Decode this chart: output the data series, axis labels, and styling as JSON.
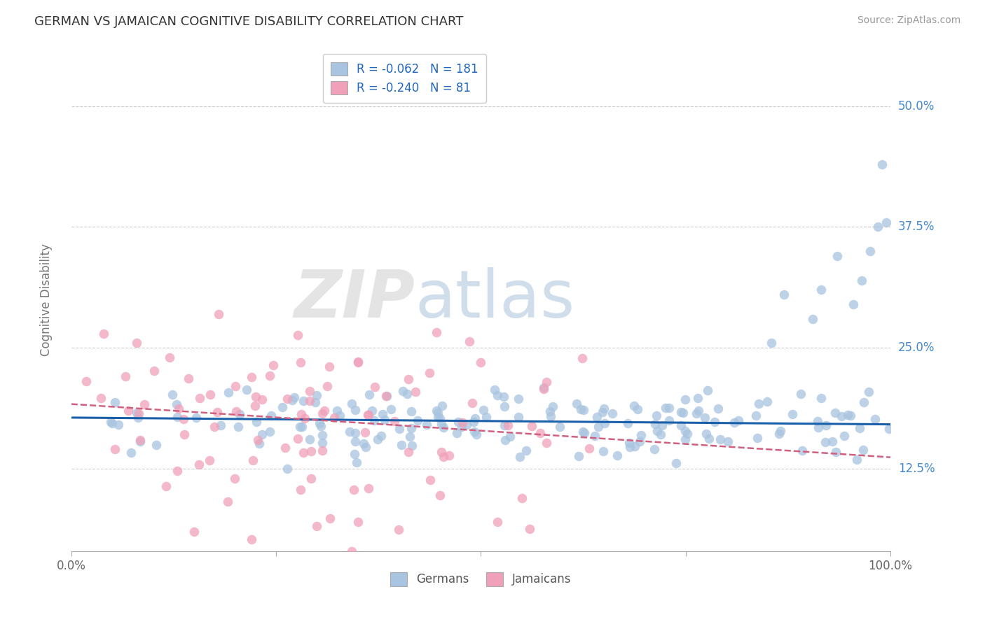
{
  "title": "GERMAN VS JAMAICAN COGNITIVE DISABILITY CORRELATION CHART",
  "source": "Source: ZipAtlas.com",
  "ylabel": "Cognitive Disability",
  "watermark_zip": "ZIP",
  "watermark_atlas": "atlas",
  "xlim": [
    0.0,
    1.0
  ],
  "ylim": [
    0.04,
    0.56
  ],
  "yticks": [
    0.125,
    0.25,
    0.375,
    0.5
  ],
  "ytick_labels": [
    "12.5%",
    "25.0%",
    "37.5%",
    "50.0%"
  ],
  "xticks": [
    0.0,
    0.25,
    0.5,
    0.75,
    1.0
  ],
  "xtick_labels": [
    "0.0%",
    "",
    "",
    "",
    "100.0%"
  ],
  "german_R": -0.062,
  "german_N": 181,
  "jamaican_R": -0.24,
  "jamaican_N": 81,
  "german_color": "#a8c4e0",
  "jamaican_color": "#f0a0b8",
  "trend_german_color": "#1a5faa",
  "trend_jamaican_color": "#d06080",
  "background_color": "#ffffff",
  "grid_color": "#cccccc",
  "german_trend_intercept": 0.178,
  "german_trend_slope": -0.007,
  "jamaican_trend_intercept": 0.192,
  "jamaican_trend_slope": -0.055
}
